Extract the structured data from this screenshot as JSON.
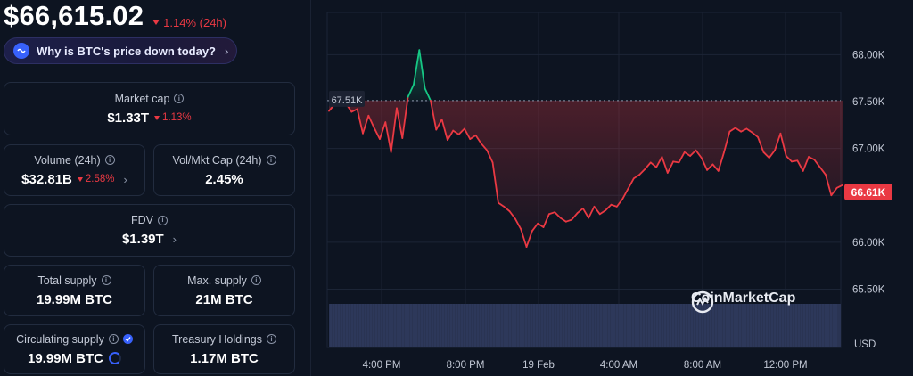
{
  "header": {
    "price": "$66,615.02",
    "change": "1.14% (24h)",
    "ai_question": "Why is BTC's price down today?"
  },
  "stats": {
    "market_cap": {
      "label": "Market cap",
      "value": "$1.33T",
      "change": "1.13%"
    },
    "volume": {
      "label": "Volume (24h)",
      "value": "$32.81B",
      "change": "2.58%"
    },
    "vol_mkt_cap": {
      "label": "Vol/Mkt Cap (24h)",
      "value": "2.45%"
    },
    "fdv": {
      "label": "FDV",
      "value": "$1.39T"
    },
    "total_supply": {
      "label": "Total supply",
      "value": "19.99M BTC"
    },
    "max_supply": {
      "label": "Max. supply",
      "value": "21M BTC"
    },
    "circulating_supply": {
      "label": "Circulating supply",
      "value": "19.99M BTC"
    },
    "treasury_holdings": {
      "label": "Treasury Holdings",
      "value": "1.17M BTC"
    }
  },
  "chart": {
    "watermark": "CoinMarketCap",
    "reference_label": "67.51K",
    "current_label": "66.61K",
    "currency": "USD",
    "colors": {
      "up": "#16c784",
      "down": "#ea3943",
      "volume": "#2a3453"
    }
  },
  "chart_data": {
    "type": "line",
    "title": "",
    "xlabel": "",
    "ylabel": "USD",
    "ylim": [
      65400,
      68450
    ],
    "y_ticks": [
      "68.00K",
      "67.50K",
      "67.00K",
      "66.50K",
      "66.00K",
      "65.50K"
    ],
    "x_ticks": [
      "4:00 PM",
      "8:00 PM",
      "19 Feb",
      "4:00 AM",
      "8:00 AM",
      "12:00 PM"
    ],
    "reference_value": 67510,
    "current_value": 66610,
    "series": [
      {
        "values": [
          67400,
          67470,
          67510,
          67480,
          67390,
          67420,
          67160,
          67350,
          67220,
          67100,
          67280,
          66960,
          67430,
          67110,
          67550,
          67680,
          68050,
          67640,
          67510,
          67200,
          67310,
          67090,
          67190,
          67150,
          67210,
          67100,
          67140,
          67050,
          66980,
          66850,
          66420,
          66380,
          66330,
          66250,
          66140,
          65950,
          66120,
          66200,
          66160,
          66300,
          66320,
          66260,
          66220,
          66240,
          66310,
          66360,
          66260,
          66380,
          66300,
          66340,
          66400,
          66380,
          66460,
          66570,
          66680,
          66720,
          66780,
          66850,
          66800,
          66910,
          66740,
          66860,
          66850,
          66960,
          66920,
          66980,
          66900,
          66770,
          66830,
          66760,
          66960,
          67180,
          67220,
          67180,
          67210,
          67170,
          67120,
          66960,
          66900,
          66980,
          67160,
          66920,
          66860,
          66870,
          66760,
          66910,
          66880,
          66800,
          66720,
          66500,
          66580,
          66610
        ]
      }
    ]
  }
}
